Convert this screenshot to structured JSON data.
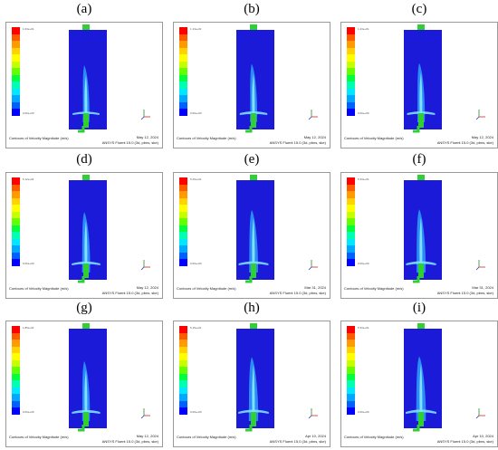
{
  "panels": [
    {
      "label": "(a)",
      "legend_top": "1.03e+01",
      "date": "May 12, 2024",
      "jet": 0.2
    },
    {
      "label": "(b)",
      "legend_top": "1.13e+01",
      "date": "May 12, 2024",
      "jet": 0.3
    },
    {
      "label": "(c)",
      "legend_top": "1.23e+01",
      "date": "May 12, 2024",
      "jet": 0.35
    },
    {
      "label": "(d)",
      "legend_top": "5.12e+01",
      "date": "May 12, 2024",
      "jet": 0.45
    },
    {
      "label": "(e)",
      "legend_top": "5.26e+01",
      "date": "Mar 31, 2024",
      "jet": 0.6
    },
    {
      "label": "(f)",
      "legend_top": "5.33e+01",
      "date": "Mar 31, 2024",
      "jet": 0.65
    },
    {
      "label": "(g)",
      "legend_top": "1.85e+01",
      "date": "May 12, 2024",
      "jet": 0.4
    },
    {
      "label": "(h)",
      "legend_top": "5.15e+01",
      "date": "Apr 10, 2024",
      "jet": 0.7
    },
    {
      "label": "(i)",
      "legend_top": "5.33e+01",
      "date": "Apr 10, 2024",
      "jet": 0.75
    }
  ],
  "caption_title": "Contours of Velocity Magnitude (m/s)",
  "software": "ANSYS Fluent 15.0 (3d, pbns, ske)",
  "legend_bottom": "0.00e+00",
  "colors": {
    "fluid": "#1a1ad8",
    "jet_core": "#7fe0ff",
    "jet_mid": "#2fa0ff",
    "inlet": "#30d030",
    "legend": [
      "#ff0000",
      "#ff5a00",
      "#ff9a00",
      "#ffd200",
      "#ffff00",
      "#c8ff00",
      "#64ff00",
      "#00ff40",
      "#00ffb0",
      "#00e8ff",
      "#00a8ff",
      "#0060ff",
      "#0000ff"
    ]
  }
}
